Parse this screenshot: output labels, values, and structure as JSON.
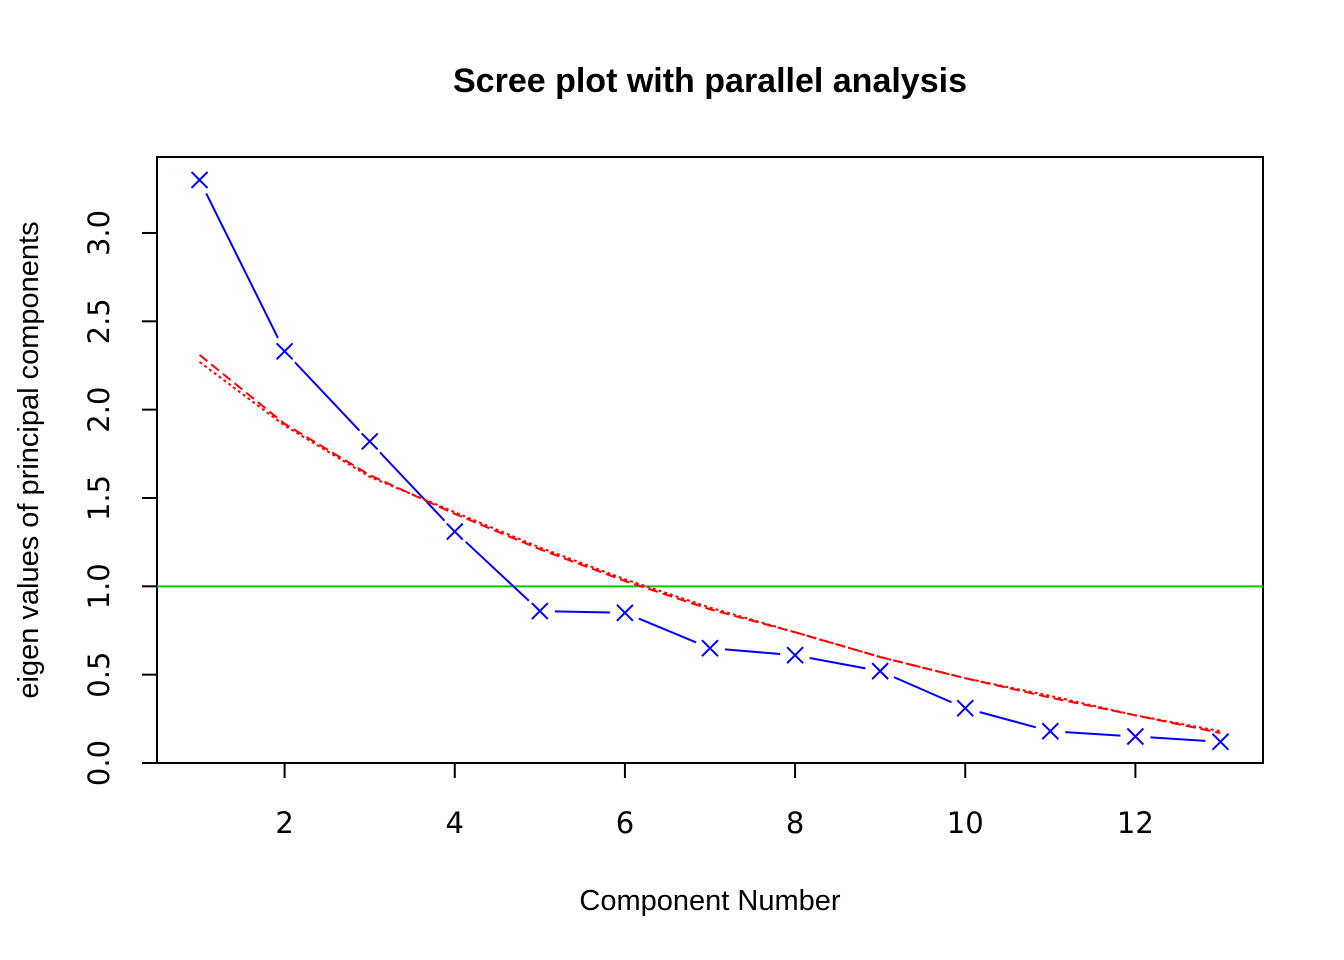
{
  "chart_data": {
    "type": "line",
    "title": "Scree plot with parallel analysis",
    "xlabel": "Component Number",
    "ylabel": "eigen values of principal components",
    "xlim": [
      0.5,
      13.5
    ],
    "ylim": [
      0,
      3.43
    ],
    "x_ticks": [
      2,
      4,
      6,
      8,
      10,
      12
    ],
    "y_ticks": [
      0.0,
      0.5,
      1.0,
      1.5,
      2.0,
      2.5,
      3.0
    ],
    "x_tick_labels": [
      "2",
      "4",
      "6",
      "8",
      "10",
      "12"
    ],
    "y_tick_labels": [
      "0.0",
      "0.5",
      "1.0",
      "1.5",
      "2.0",
      "2.5",
      "3.0"
    ],
    "grid": false,
    "legend": "none",
    "x": [
      1,
      2,
      3,
      4,
      5,
      6,
      7,
      8,
      9,
      10,
      11,
      12,
      13
    ],
    "series": [
      {
        "role": "actual",
        "color": "#0000ff",
        "marker": "x",
        "line_style": "solid",
        "values": [
          3.3,
          2.33,
          1.82,
          1.31,
          0.86,
          0.85,
          0.65,
          0.61,
          0.52,
          0.31,
          0.18,
          0.15,
          0.12
        ]
      },
      {
        "role": "simulated",
        "color": "#ff0000",
        "marker": "none",
        "line_style": "dashed",
        "values": [
          2.31,
          1.92,
          1.63,
          1.41,
          1.21,
          1.03,
          0.87,
          0.74,
          0.6,
          0.48,
          0.37,
          0.27,
          0.17
        ]
      },
      {
        "role": "resampled",
        "color": "#ff0000",
        "marker": "none",
        "line_style": "dotted",
        "values": [
          2.27,
          1.91,
          1.62,
          1.42,
          1.22,
          1.04,
          0.88,
          0.74,
          0.6,
          0.48,
          0.38,
          0.27,
          0.18
        ]
      }
    ],
    "reference_line": {
      "y": 1.0,
      "color": "#00cd00"
    }
  }
}
